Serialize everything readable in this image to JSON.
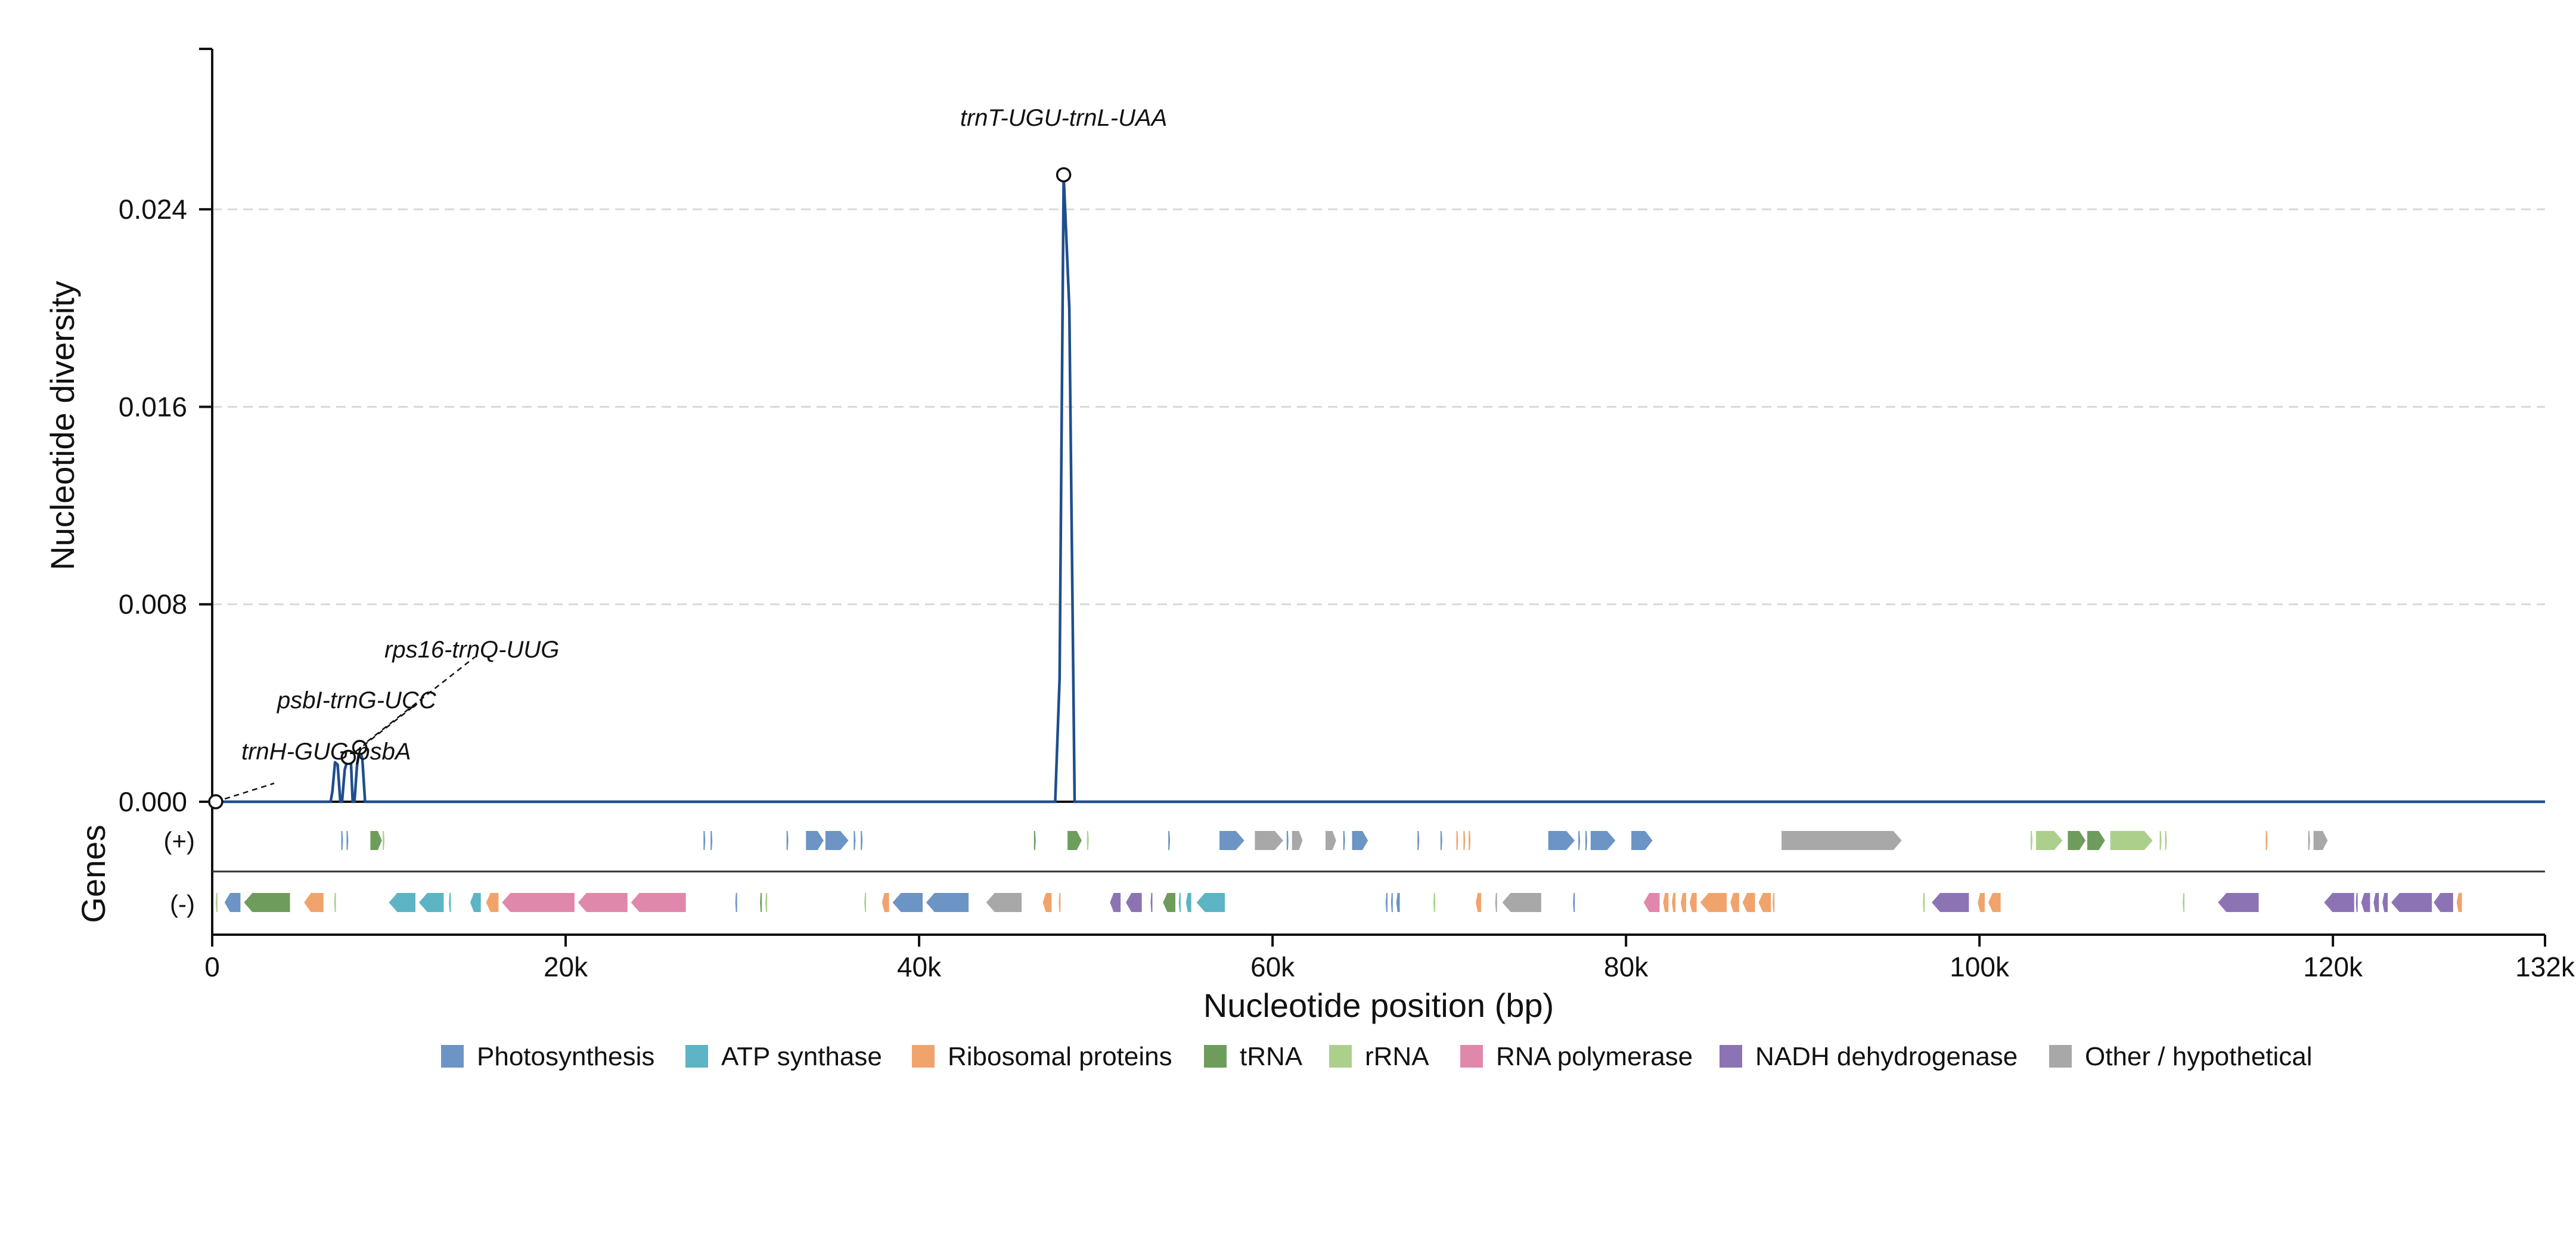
{
  "chart_data": {
    "type": "line",
    "title": "",
    "ylabel": "Nucleotide diversity",
    "xlabel": "Nucleotide position (bp)",
    "gene_track_label": "Genes",
    "strand_labels": {
      "plus": "(+)",
      "minus": "(-)"
    },
    "xlim": [
      0,
      132000
    ],
    "ylim": [
      0,
      0.0305
    ],
    "x_ticks": [
      0,
      20000,
      40000,
      60000,
      80000,
      100000,
      120000,
      132000
    ],
    "x_tick_labels": [
      "0",
      "20k",
      "40k",
      "60k",
      "80k",
      "100k",
      "120k",
      "132k"
    ],
    "y_ticks": [
      0,
      0.008,
      0.016,
      0.024
    ],
    "y_tick_labels": [
      "0.000",
      "0.008",
      "0.016",
      "0.024"
    ],
    "grid": "horizontal dashed",
    "line_color": "#1f4e8c",
    "series": [
      {
        "points": [
          [
            0,
            0
          ],
          [
            6700,
            0
          ],
          [
            6800,
            0.0004
          ],
          [
            6950,
            0.0016
          ],
          [
            7100,
            0.0015
          ],
          [
            7250,
            0
          ],
          [
            7350,
            0
          ],
          [
            7500,
            0.0013
          ],
          [
            7700,
            0.0018
          ],
          [
            7850,
            0.0016
          ],
          [
            7950,
            0
          ],
          [
            8050,
            0
          ],
          [
            8200,
            0.0015
          ],
          [
            8350,
            0.0022
          ],
          [
            8500,
            0.0017
          ],
          [
            8650,
            0
          ],
          [
            47700,
            0
          ],
          [
            47950,
            0.005
          ],
          [
            48180,
            0.0254
          ],
          [
            48500,
            0.02
          ],
          [
            48800,
            0
          ],
          [
            132000,
            0
          ]
        ]
      }
    ],
    "annotations": [
      {
        "label": "trnT-UGU-trnL-UAA",
        "x": 48180,
        "y": 0.0254
      },
      {
        "label": "rps16-trnQ-UUG",
        "x": 8350,
        "y": 0.0022
      },
      {
        "label": "psbI-trnG-UCC",
        "x": 7700,
        "y": 0.0018
      },
      {
        "label": "trnH-GUG-psbA",
        "x": 200,
        "y": 0.0
      }
    ],
    "categories": [
      {
        "key": "photo",
        "name": "Photosynthesis",
        "color": "#6c94c4"
      },
      {
        "key": "atp",
        "name": "ATP synthase",
        "color": "#5cb4c4"
      },
      {
        "key": "ribo",
        "name": "Ribosomal proteins",
        "color": "#f0a46c"
      },
      {
        "key": "trna",
        "name": "tRNA",
        "color": "#6e9c5c"
      },
      {
        "key": "rrna",
        "name": "rRNA",
        "color": "#acd08c"
      },
      {
        "key": "rnapol",
        "name": "RNA polymerase",
        "color": "#e088ac"
      },
      {
        "key": "ndh",
        "name": "NADH dehydrogenase",
        "color": "#8c74b4"
      },
      {
        "key": "other",
        "name": "Other / hypothetical",
        "color": "#a8a8a8"
      }
    ],
    "genes_plus": [
      [
        7300,
        7400,
        "photo"
      ],
      [
        7600,
        7700,
        "photo"
      ],
      [
        8950,
        9600,
        "trna"
      ],
      [
        9650,
        9750,
        "rrna"
      ],
      [
        27800,
        27900,
        "photo"
      ],
      [
        28200,
        28300,
        "photo"
      ],
      [
        32500,
        32600,
        "photo"
      ],
      [
        33600,
        34600,
        "photo"
      ],
      [
        34700,
        36000,
        "photo"
      ],
      [
        36300,
        36400,
        "photo"
      ],
      [
        36700,
        36800,
        "photo"
      ],
      [
        46500,
        46600,
        "trna"
      ],
      [
        48400,
        49200,
        "trna"
      ],
      [
        49500,
        49600,
        "rrna"
      ],
      [
        54100,
        54200,
        "photo"
      ],
      [
        57000,
        58400,
        "photo"
      ],
      [
        59000,
        60600,
        "other"
      ],
      [
        60800,
        60900,
        "photo"
      ],
      [
        61100,
        61700,
        "other"
      ],
      [
        63000,
        63600,
        "other"
      ],
      [
        64000,
        64100,
        "photo"
      ],
      [
        64500,
        65400,
        "photo"
      ],
      [
        68200,
        68300,
        "photo"
      ],
      [
        69500,
        69600,
        "photo"
      ],
      [
        70400,
        70500,
        "ribo"
      ],
      [
        70800,
        70900,
        "ribo"
      ],
      [
        71100,
        71200,
        "ribo"
      ],
      [
        75600,
        77100,
        "photo"
      ],
      [
        77300,
        77400,
        "photo"
      ],
      [
        77700,
        77800,
        "photo"
      ],
      [
        78000,
        79400,
        "photo"
      ],
      [
        80300,
        81500,
        "photo"
      ],
      [
        88800,
        95600,
        "other"
      ],
      [
        102900,
        103000,
        "rrna"
      ],
      [
        103200,
        104700,
        "rrna"
      ],
      [
        105000,
        106000,
        "trna"
      ],
      [
        106100,
        107100,
        "trna"
      ],
      [
        107400,
        109800,
        "rrna"
      ],
      [
        110200,
        110300,
        "rrna"
      ],
      [
        110500,
        110600,
        "rrna"
      ],
      [
        116200,
        116300,
        "ribo"
      ],
      [
        118600,
        118700,
        "other"
      ],
      [
        118900,
        119700,
        "other"
      ]
    ],
    "genes_minus": [
      [
        200,
        300,
        "rrna"
      ],
      [
        700,
        1600,
        "photo"
      ],
      [
        1800,
        4400,
        "trna"
      ],
      [
        5200,
        6300,
        "ribo"
      ],
      [
        6900,
        7000,
        "rrna"
      ],
      [
        10000,
        11500,
        "atp"
      ],
      [
        11700,
        13100,
        "atp"
      ],
      [
        13400,
        13500,
        "atp"
      ],
      [
        14600,
        15200,
        "atp"
      ],
      [
        15500,
        16200,
        "ribo"
      ],
      [
        16400,
        20500,
        "rnapol"
      ],
      [
        20700,
        23500,
        "rnapol"
      ],
      [
        23700,
        26800,
        "rnapol"
      ],
      [
        29600,
        29700,
        "photo"
      ],
      [
        31000,
        31100,
        "trna"
      ],
      [
        31300,
        31400,
        "rrna"
      ],
      [
        36900,
        37000,
        "rrna"
      ],
      [
        37900,
        38300,
        "ribo"
      ],
      [
        38500,
        40200,
        "photo"
      ],
      [
        40400,
        42800,
        "photo"
      ],
      [
        43800,
        45800,
        "other"
      ],
      [
        47000,
        47500,
        "ribo"
      ],
      [
        47900,
        48000,
        "ribo"
      ],
      [
        50800,
        51400,
        "ndh"
      ],
      [
        51700,
        52600,
        "ndh"
      ],
      [
        53100,
        53200,
        "ndh"
      ],
      [
        53800,
        54500,
        "trna"
      ],
      [
        54700,
        54800,
        "atp"
      ],
      [
        55100,
        55400,
        "atp"
      ],
      [
        55700,
        57300,
        "atp"
      ],
      [
        66400,
        66500,
        "photo"
      ],
      [
        66700,
        66800,
        "photo"
      ],
      [
        67000,
        67200,
        "photo"
      ],
      [
        69100,
        69200,
        "rrna"
      ],
      [
        71500,
        71800,
        "ribo"
      ],
      [
        72600,
        72700,
        "other"
      ],
      [
        73000,
        75200,
        "other"
      ],
      [
        77000,
        77100,
        "photo"
      ],
      [
        81000,
        81900,
        "rnapol"
      ],
      [
        82100,
        82400,
        "ribo"
      ],
      [
        82600,
        82800,
        "ribo"
      ],
      [
        83100,
        83400,
        "ribo"
      ],
      [
        83600,
        84000,
        "ribo"
      ],
      [
        84200,
        85700,
        "ribo"
      ],
      [
        85900,
        86400,
        "ribo"
      ],
      [
        86600,
        87300,
        "ribo"
      ],
      [
        87500,
        88200,
        "ribo"
      ],
      [
        88300,
        88400,
        "ribo"
      ],
      [
        96800,
        96900,
        "rrna"
      ],
      [
        97300,
        99400,
        "ndh"
      ],
      [
        99900,
        100300,
        "ribo"
      ],
      [
        100500,
        101200,
        "ribo"
      ],
      [
        111500,
        111600,
        "rrna"
      ],
      [
        113500,
        115800,
        "ndh"
      ],
      [
        119500,
        121200,
        "ndh"
      ],
      [
        121300,
        121400,
        "ndh"
      ],
      [
        121600,
        122100,
        "ndh"
      ],
      [
        122300,
        122600,
        "ndh"
      ],
      [
        122800,
        123100,
        "ndh"
      ],
      [
        123300,
        125600,
        "ndh"
      ],
      [
        125700,
        126800,
        "ndh"
      ],
      [
        127000,
        127300,
        "ribo"
      ]
    ]
  }
}
